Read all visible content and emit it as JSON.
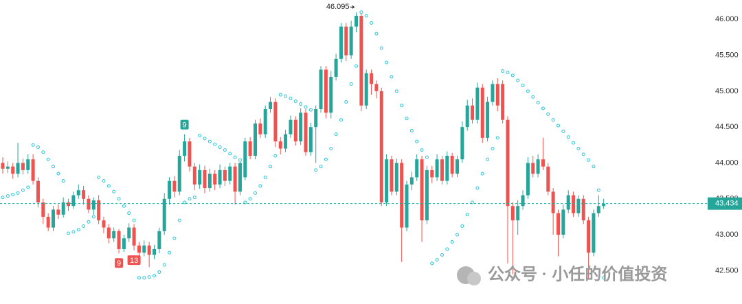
{
  "chart_data": {
    "type": "candlestick",
    "up_color": "#26a69a",
    "down_color": "#ef5350",
    "sar_color": "#26c6da",
    "grid": false,
    "ylim": [
      42.035,
      46.27
    ],
    "yticks": [
      {
        "value": 42.5,
        "label": "42.500"
      },
      {
        "value": 43,
        "label": "43.000"
      },
      {
        "value": 43.5,
        "label": "43.500"
      },
      {
        "value": 44,
        "label": "44.000"
      },
      {
        "value": 44.5,
        "label": "44.500"
      },
      {
        "value": 45,
        "label": "45.000"
      },
      {
        "value": 45.5,
        "label": "45.500"
      },
      {
        "value": 46,
        "label": "46.000"
      }
    ],
    "open": [
      44.0,
      43.92,
      43.95,
      43.85,
      44.0,
      43.9,
      44.05,
      43.75,
      43.45,
      43.25,
      43.1,
      43.35,
      43.28,
      43.45,
      43.4,
      43.55,
      43.62,
      43.5,
      43.35,
      43.48,
      43.2,
      43.1,
      42.95,
      43.05,
      42.8,
      42.95,
      43.1,
      42.85,
      42.75,
      42.85,
      42.72,
      42.8,
      43.05,
      43.5,
      43.75,
      43.6,
      44.1,
      44.3,
      43.95,
      43.7,
      43.9,
      43.65,
      43.85,
      43.7,
      43.9,
      43.75,
      43.95,
      43.6,
      43.8,
      44.3,
      44.1,
      44.55,
      44.4,
      44.75,
      44.85,
      44.3,
      44.2,
      44.4,
      44.6,
      44.3,
      44.7,
      44.15,
      44.5,
      44.75,
      45.3,
      44.7,
      45.2,
      45.45,
      45.9,
      45.5,
      45.9,
      46.05,
      44.8,
      45.25,
      45.1,
      45.0,
      43.45,
      44.05,
      43.6,
      44.0,
      43.1,
      43.7,
      43.8,
      44.05,
      43.2,
      43.9,
      43.8,
      44.05,
      43.75,
      44.1,
      43.85,
      44.05,
      44.5,
      44.8,
      44.6,
      45.05,
      44.35,
      44.85,
      45.1,
      45.1,
      44.6,
      43.4,
      43.2,
      43.4,
      43.55,
      44.0,
      43.85,
      44.05,
      43.95,
      43.6,
      43.3,
      43.0,
      43.35,
      43.55,
      43.3,
      43.5,
      43.2,
      42.75,
      43.3,
      43.4
    ],
    "high": [
      44.08,
      44.02,
      44.0,
      44.28,
      44.06,
      44.12,
      44.12,
      43.8,
      43.5,
      43.3,
      43.4,
      43.42,
      43.52,
      43.5,
      43.6,
      43.7,
      43.68,
      43.55,
      43.52,
      43.55,
      43.25,
      43.15,
      43.1,
      43.08,
      43.0,
      43.16,
      43.15,
      42.9,
      42.92,
      42.9,
      42.86,
      43.1,
      43.58,
      43.8,
      43.82,
      44.18,
      44.4,
      44.35,
      44.0,
      43.98,
      43.96,
      43.92,
      43.9,
      43.98,
      43.95,
      44.0,
      44.0,
      44.02,
      44.35,
      44.36,
      44.6,
      44.62,
      44.8,
      44.92,
      44.9,
      44.36,
      44.46,
      44.66,
      44.65,
      44.76,
      44.75,
      44.56,
      44.8,
      45.35,
      45.35,
      45.28,
      45.52,
      45.95,
      45.95,
      45.98,
      46.095,
      46.08,
      45.3,
      45.3,
      45.15,
      45.05,
      44.12,
      44.1,
      44.06,
      44.05,
      43.75,
      43.88,
      44.12,
      44.1,
      43.96,
      43.96,
      44.12,
      44.1,
      44.16,
      44.14,
      44.1,
      44.58,
      44.88,
      44.9,
      45.12,
      45.1,
      44.92,
      45.15,
      45.18,
      45.15,
      44.65,
      43.45,
      43.48,
      43.62,
      44.08,
      44.1,
      44.12,
      44.35,
      44.0,
      43.65,
      43.35,
      43.42,
      43.62,
      43.6,
      43.55,
      43.55,
      43.25,
      43.35,
      43.55,
      43.5
    ],
    "low": [
      43.85,
      43.86,
      43.78,
      43.8,
      43.84,
      43.85,
      43.7,
      43.38,
      43.15,
      43.05,
      43.05,
      43.22,
      43.24,
      43.33,
      43.36,
      43.5,
      43.42,
      43.3,
      43.28,
      43.15,
      43.02,
      42.88,
      42.9,
      42.74,
      42.76,
      42.9,
      42.78,
      42.65,
      42.7,
      42.55,
      42.66,
      42.74,
      43.0,
      43.42,
      43.52,
      43.55,
      44.02,
      43.88,
      43.62,
      43.64,
      43.58,
      43.6,
      43.62,
      43.65,
      43.68,
      43.7,
      43.42,
      43.55,
      43.76,
      44.05,
      44.05,
      44.35,
      44.35,
      44.7,
      44.22,
      44.12,
      44.15,
      44.35,
      44.24,
      44.25,
      44.1,
      44.1,
      44.0,
      44.7,
      44.62,
      44.62,
      45.15,
      45.4,
      45.42,
      45.45,
      45.82,
      44.72,
      44.75,
      44.95,
      44.9,
      43.4,
      43.4,
      43.55,
      43.55,
      42.62,
      43.05,
      43.62,
      43.75,
      42.9,
      43.15,
      43.72,
      43.75,
      43.7,
      43.7,
      43.8,
      43.8,
      44.0,
      44.45,
      44.55,
      44.55,
      44.28,
      44.3,
      44.8,
      44.72,
      44.55,
      42.6,
      42.45,
      43.0,
      43.35,
      43.5,
      43.8,
      43.8,
      43.9,
      43.55,
      43.0,
      42.7,
      42.95,
      43.3,
      43.25,
      43.25,
      43.15,
      42.38,
      42.7,
      43.25,
      43.36
    ],
    "close": [
      43.92,
      43.95,
      43.85,
      44.0,
      43.9,
      44.05,
      43.75,
      43.45,
      43.25,
      43.1,
      43.35,
      43.28,
      43.45,
      43.4,
      43.55,
      43.62,
      43.5,
      43.35,
      43.48,
      43.2,
      43.1,
      42.95,
      43.05,
      42.8,
      42.95,
      43.1,
      42.85,
      42.75,
      42.85,
      42.72,
      42.8,
      43.05,
      43.5,
      43.75,
      43.6,
      44.1,
      44.3,
      43.95,
      43.7,
      43.9,
      43.65,
      43.85,
      43.7,
      43.9,
      43.75,
      43.95,
      43.6,
      44.0,
      44.3,
      44.1,
      44.55,
      44.4,
      44.75,
      44.85,
      44.3,
      44.2,
      44.4,
      44.6,
      44.3,
      44.7,
      44.15,
      44.5,
      44.75,
      45.3,
      44.7,
      45.2,
      45.45,
      45.9,
      45.5,
      45.9,
      46.05,
      44.8,
      45.25,
      45.1,
      45.0,
      43.45,
      44.05,
      43.6,
      44.0,
      43.1,
      43.7,
      43.8,
      44.05,
      43.2,
      43.9,
      43.8,
      44.05,
      43.75,
      44.1,
      43.85,
      44.05,
      44.5,
      44.8,
      44.6,
      45.05,
      44.35,
      44.85,
      45.1,
      44.8,
      44.6,
      43.4,
      43.2,
      43.4,
      43.55,
      44.0,
      43.85,
      44.05,
      43.95,
      43.6,
      43.3,
      43.0,
      43.35,
      43.55,
      43.3,
      43.5,
      43.2,
      42.75,
      43.3,
      43.4,
      43.434
    ],
    "sar": [
      43.52,
      43.54,
      43.56,
      43.58,
      43.62,
      43.66,
      44.25,
      44.22,
      44.15,
      44.05,
      43.95,
      43.85,
      43.75,
      43.02,
      43.04,
      43.07,
      43.12,
      43.18,
      43.25,
      43.8,
      43.75,
      43.68,
      43.6,
      43.5,
      43.4,
      43.3,
      43.2,
      42.4,
      42.4,
      42.41,
      42.43,
      42.48,
      42.58,
      42.75,
      42.95,
      43.2,
      43.45,
      43.5,
      43.52,
      44.38,
      44.34,
      44.3,
      44.26,
      44.22,
      44.18,
      44.13,
      44.08,
      44.04,
      43.45,
      43.5,
      43.58,
      43.68,
      43.8,
      43.95,
      44.1,
      44.95,
      44.93,
      44.9,
      44.86,
      44.82,
      44.78,
      44.74,
      43.9,
      43.95,
      44.05,
      44.2,
      44.4,
      44.6,
      44.85,
      45.1,
      45.35,
      46.1,
      46.05,
      45.95,
      45.8,
      45.6,
      45.4,
      45.2,
      45.0,
      44.8,
      44.62,
      44.45,
      44.3,
      44.18,
      44.08,
      42.6,
      42.65,
      42.72,
      42.8,
      42.9,
      43.0,
      43.12,
      43.28,
      43.45,
      43.65,
      43.85,
      44.05,
      44.2,
      44.35,
      45.28,
      45.26,
      45.22,
      45.15,
      45.08,
      45.0,
      44.92,
      44.84,
      44.76,
      44.68,
      44.6,
      44.52,
      44.44,
      44.36,
      44.28,
      44.2,
      44.12,
      44.04,
      43.95,
      43.62,
      42.4
    ],
    "td_labels": [
      {
        "index": 23,
        "label": "9",
        "side": "below",
        "color": "#ef5350"
      },
      {
        "index": 26,
        "label": "13",
        "side": "below",
        "color": "#ef5350"
      },
      {
        "index": 36,
        "label": "9",
        "side": "above",
        "color": "#26a69a"
      }
    ],
    "watermark": "公众号 · 小任的价值投资"
  }
}
